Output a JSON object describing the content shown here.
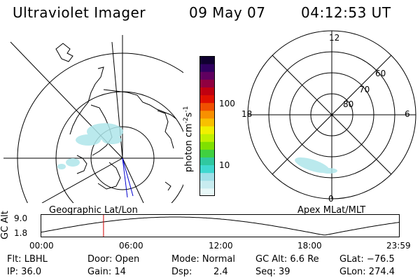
{
  "header": {
    "instrument": "Ultraviolet Imager",
    "date": "09 May 07",
    "time": "04:12:53 UT"
  },
  "left_panel": {
    "label": "Geographic Lat/Lon"
  },
  "right_panel": {
    "label": "Apex MLat/MLT",
    "mlt_labels": [
      "12",
      "18",
      "6",
      "0"
    ],
    "lat_labels": [
      "60",
      "70",
      "80"
    ]
  },
  "colorbar": {
    "unit_text": "photon cm",
    "unit_exp1": "-2",
    "unit_mid": "s",
    "unit_exp2": "-1",
    "tick_labels": [
      "100",
      "10"
    ],
    "colors": [
      "#e8f8f8",
      "#c8ecf0",
      "#a0e0e8",
      "#40d8d0",
      "#30c8a0",
      "#40d040",
      "#80e000",
      "#c0f000",
      "#f0f000",
      "#f8c000",
      "#f89000",
      "#f05000",
      "#e01000",
      "#c00010",
      "#900040",
      "#600060",
      "#300060",
      "#100030"
    ]
  },
  "gc_alt": {
    "axis_title": "GC Alt",
    "y_ticks": [
      "9.0",
      "1.8"
    ],
    "x_ticks": [
      "00:00",
      "06:00",
      "12:00",
      "18:00",
      "23:59"
    ],
    "current_time_hours": 4.215
  },
  "status": {
    "row1": {
      "flt": "Flt: LBHL",
      "door": "Door: Open",
      "mode": "Mode: Normal",
      "gcalt": "GC Alt: 6.6 Re",
      "glat": "GLat: −76.5"
    },
    "row2": {
      "ip": "IP: 36.0",
      "gain": "Gain: 14",
      "dsp_label": "Dsp:",
      "dsp_value": "2.4",
      "seq": "Seq: 39",
      "glon": "GLon: 274.4"
    }
  }
}
